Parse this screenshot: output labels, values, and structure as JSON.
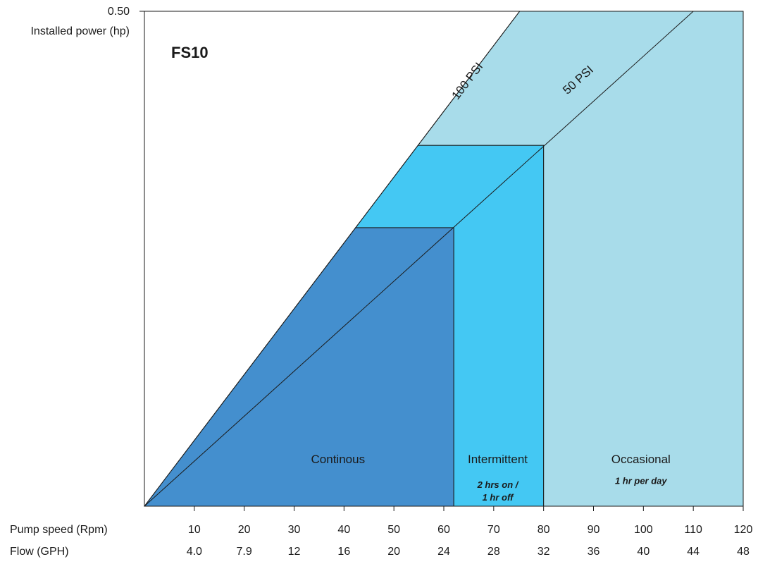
{
  "chart_data": {
    "type": "area",
    "title": "FS10",
    "ylabel": "Installed power (hp)",
    "y_top_tick": "0.50",
    "ylim": [
      0,
      0.5
    ],
    "xlim": [
      0,
      120
    ],
    "x_axis_rows": [
      {
        "label": "Pump speed (Rpm)",
        "ticks": [
          "10",
          "20",
          "30",
          "40",
          "50",
          "60",
          "70",
          "80",
          "90",
          "100",
          "110",
          "120"
        ]
      },
      {
        "label": "Flow (GPH)",
        "ticks": [
          "4.0",
          "7.9",
          "12",
          "16",
          "20",
          "24",
          "28",
          "32",
          "36",
          "40",
          "44",
          "48"
        ]
      }
    ],
    "pressure_lines": [
      {
        "name": "100 PSI",
        "points": [
          [
            0,
            0
          ],
          [
            75.2,
            0.5
          ]
        ]
      },
      {
        "name": "50 PSI",
        "points": [
          [
            0,
            0
          ],
          [
            110,
            0.5
          ]
        ]
      }
    ],
    "zones": [
      {
        "name": "Continous",
        "subtitle": "",
        "color": "#448fce",
        "x_start": 0,
        "x_end": 62,
        "top_power": 0.2814,
        "label_x": 38.8,
        "label_y": 0.0436,
        "sub_y": 0
      },
      {
        "name": "Intermittent",
        "subtitle_lines": [
          "2 hrs on /",
          "1 hr off"
        ],
        "color": "#44c8f3",
        "x_start": 62,
        "x_end": 80,
        "top_power": 0.3646,
        "label_x": 70.8,
        "label_y": 0.0436,
        "sub_y": 0.0186
      },
      {
        "name": "Occasional",
        "subtitle_lines": [
          "1 hr per day"
        ],
        "color": "#a8dcea",
        "x_start": 80,
        "x_end": 120,
        "top_power": 0.5,
        "label_x": 99.5,
        "label_y": 0.0436,
        "sub_y": 0.0225
      }
    ],
    "grid": false,
    "legend": "none"
  }
}
